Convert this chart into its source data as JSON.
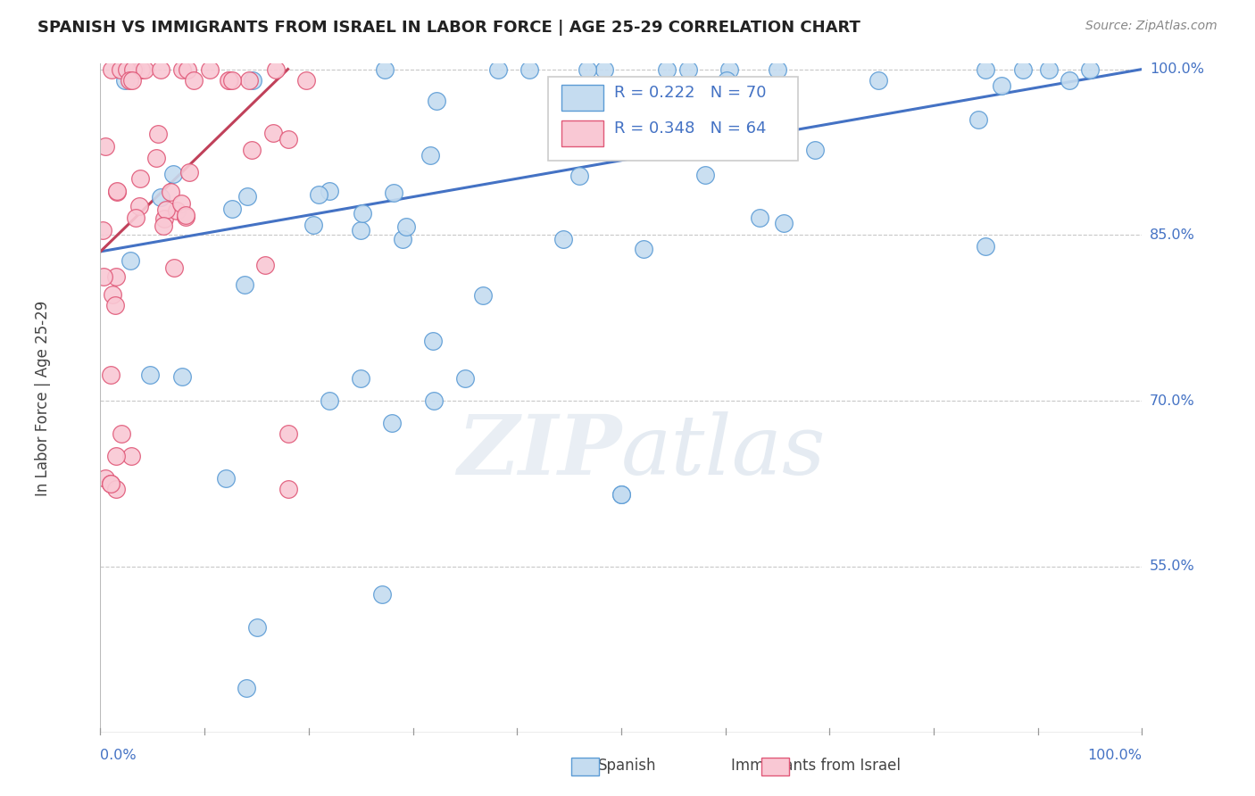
{
  "title": "SPANISH VS IMMIGRANTS FROM ISRAEL IN LABOR FORCE | AGE 25-29 CORRELATION CHART",
  "source": "Source: ZipAtlas.com",
  "ylabel": "In Labor Force | Age 25-29",
  "legend_r_blue": "R = 0.222",
  "legend_n_blue": "N = 70",
  "legend_r_pink": "R = 0.348",
  "legend_n_pink": "N = 64",
  "blue_fill": "#c5dcf0",
  "blue_edge": "#5b9bd5",
  "pink_fill": "#f9c8d4",
  "pink_edge": "#e05878",
  "trendline_blue": "#4472c4",
  "trendline_pink": "#c0415a",
  "ymin": 0.4,
  "ymax": 1.005,
  "xmin": 0.0,
  "xmax": 1.0,
  "ytick_values": [
    1.0,
    0.85,
    0.7,
    0.55
  ],
  "ytick_labels": [
    "100.0%",
    "85.0%",
    "70.0%",
    "55.0%"
  ],
  "blue_trend_x0": 0.0,
  "blue_trend_y0": 0.835,
  "blue_trend_x1": 1.0,
  "blue_trend_y1": 1.0,
  "pink_trend_x0": 0.0,
  "pink_trend_y0": 0.835,
  "pink_trend_x1": 0.18,
  "pink_trend_y1": 1.0
}
